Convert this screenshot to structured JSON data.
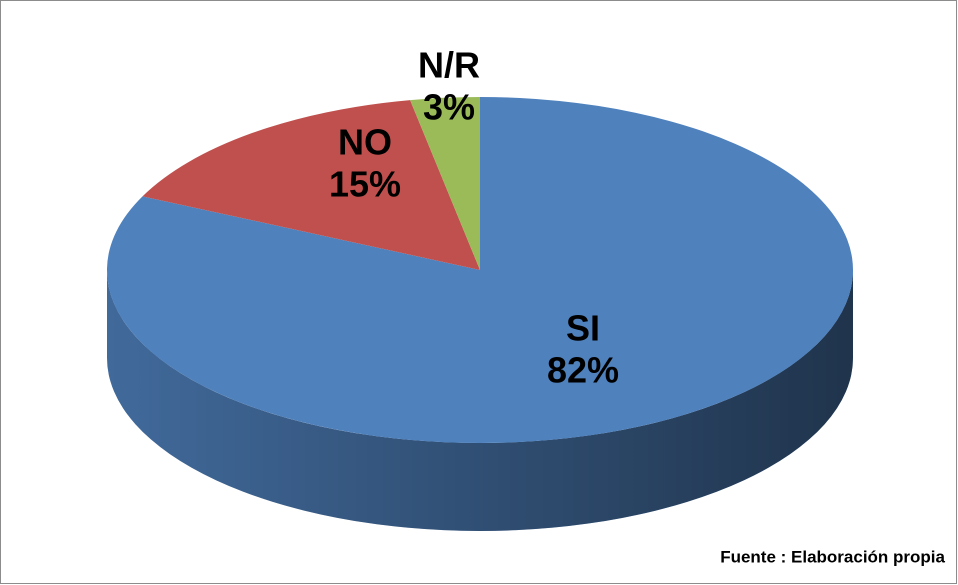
{
  "chart_data": {
    "type": "pie",
    "categories": [
      "SI",
      "NO",
      "N/R"
    ],
    "values": [
      82,
      15,
      3
    ],
    "value_labels": [
      "82%",
      "15%",
      "3%"
    ],
    "colors": [
      "#4f81bd",
      "#c0504d",
      "#9bbb59"
    ],
    "annotation": "Fuente : Elaboración propia"
  }
}
